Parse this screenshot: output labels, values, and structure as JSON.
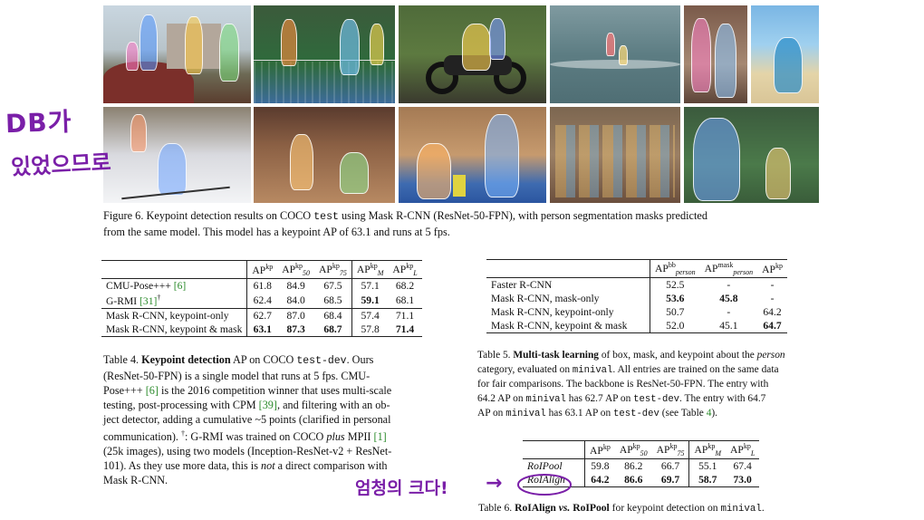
{
  "figure6": {
    "caption_label": "Figure 6.",
    "caption_text_1": "Keypoint detection results on COCO",
    "caption_code": "test",
    "caption_text_2": "using Mask R-CNN (ResNet-50-FPN), with person segmentation masks predicted",
    "caption_line2": "from the same model. This model has a keypoint AP of 63.1 and runs at 5 fps."
  },
  "table4": {
    "headers": [
      "AP",
      "AP",
      "AP",
      "AP",
      "AP"
    ],
    "header_sups": [
      "kp",
      "kp",
      "kp",
      "kp",
      "kp"
    ],
    "header_subs": [
      "",
      "50",
      "75",
      "M",
      "L"
    ],
    "rows": [
      {
        "name": "CMU-Pose+++ ",
        "cite": "[6]",
        "vals": [
          "61.8",
          "84.9",
          "67.5",
          "57.1",
          "68.2"
        ]
      },
      {
        "name": "G-RMI ",
        "cite": "[31]",
        "dag": "†",
        "vals": [
          "62.4",
          "84.0",
          "68.5",
          "59.1",
          "68.1"
        ]
      },
      {
        "name": "Mask R-CNN, keypoint-only",
        "vals": [
          "62.7",
          "87.0",
          "68.4",
          "57.4",
          "71.1"
        ]
      },
      {
        "name": "Mask R-CNN, keypoint & mask",
        "vals": [
          "63.1",
          "87.3",
          "68.7",
          "57.8",
          "71.4"
        ]
      }
    ],
    "caption_label": "Table 4.",
    "caption_bold": "Keypoint detection",
    "caption_l1a": "AP on COCO",
    "caption_l1code": "test-dev",
    "caption_l1b": ". Ours",
    "caption_l2": "(ResNet-50-FPN) is a single model that runs at 5 fps. CMU-",
    "caption_l3a": "Pose+++ ",
    "caption_l3cite": "[6]",
    "caption_l3b": " is the 2016 competition winner that uses multi-scale",
    "caption_l4a": "testing, post-processing with CPM ",
    "caption_l4cite": "[39]",
    "caption_l4b": ", and filtering with an ob-",
    "caption_l5": "ject detector, adding a cumulative ~5 points (clarified in personal",
    "caption_l6a": "communication). ",
    "caption_l6dag": "†",
    "caption_l6b": ": G-RMI was trained on COCO ",
    "caption_l6ital": "plus",
    "caption_l6c": " MPII ",
    "caption_l6cite": "[1]",
    "caption_l7": "(25k images), using two models (Inception-ResNet-v2 + ResNet-",
    "caption_l8a": "101). As they use more data, this is ",
    "caption_l8ital": "not",
    "caption_l8b": " a direct comparison with",
    "caption_l9": "Mask R-CNN."
  },
  "table5": {
    "headers": [
      "AP",
      "AP",
      "AP"
    ],
    "header_sups": [
      "bb",
      "mask",
      "kp"
    ],
    "header_subs": [
      "person",
      "person",
      ""
    ],
    "rows": [
      {
        "name": "Faster R-CNN",
        "vals": [
          "52.5",
          "-",
          "-"
        ]
      },
      {
        "name": "Mask R-CNN, mask-only",
        "vals": [
          "53.6",
          "45.8",
          "-"
        ]
      },
      {
        "name": "Mask R-CNN, keypoint-only",
        "vals": [
          "50.7",
          "-",
          "64.2"
        ]
      },
      {
        "name": "Mask R-CNN, keypoint & mask",
        "vals": [
          "52.0",
          "45.1",
          "64.7"
        ]
      }
    ],
    "caption_label": "Table 5.",
    "caption_bold": "Multi-task learning",
    "caption_l1a": " of box, mask, and keypoint about the ",
    "caption_l1ital": "person",
    "caption_l2a": "category, evaluated on ",
    "caption_l2code": "minival",
    "caption_l2b": ". All entries are trained on the same data",
    "caption_l3": "for fair comparisons. The backbone is ResNet-50-FPN. The entry with",
    "caption_l4a": "64.2 AP on ",
    "caption_l4code": "minival",
    "caption_l4b": " has 62.7 AP on ",
    "caption_l4code2": "test-dev",
    "caption_l4c": ". The entry with 64.7",
    "caption_l5a": "AP on ",
    "caption_l5code": "minival",
    "caption_l5b": " has 63.1 AP on ",
    "caption_l5code2": "test-dev",
    "caption_l5c": " (see Table ",
    "caption_l5cite": "4",
    "caption_l5d": ")."
  },
  "table6": {
    "headers": [
      "AP",
      "AP",
      "AP",
      "AP",
      "AP"
    ],
    "header_sups": [
      "kp",
      "kp",
      "kp",
      "kp",
      "kp"
    ],
    "header_subs": [
      "",
      "50",
      "75",
      "M",
      "L"
    ],
    "rows": [
      {
        "name": "RoIPool",
        "vals": [
          "59.8",
          "86.2",
          "66.7",
          "55.1",
          "67.4"
        ]
      },
      {
        "name": "RoIAlign",
        "vals": [
          "64.2",
          "86.6",
          "69.7",
          "58.7",
          "73.0"
        ]
      }
    ],
    "caption_label": "Table 6.",
    "caption_bold1": "RoIAlign ",
    "caption_vs": "vs.",
    "caption_bold2": " RoIPool",
    "caption_rest": " for keypoint detection on ",
    "caption_code": "minival",
    "caption_end": "."
  },
  "annotations": {
    "left_line1": "DB가",
    "left_line2": "있었으므로",
    "bottom_note": "엄청의 크다!",
    "arrow": "→",
    "color": "#7a1fa8"
  }
}
